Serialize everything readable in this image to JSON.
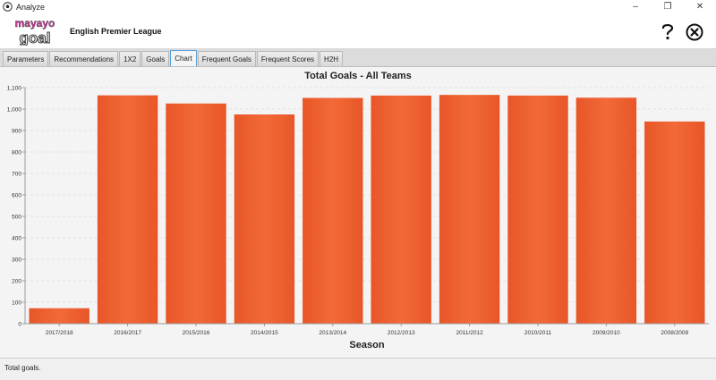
{
  "window": {
    "title": "Analyze",
    "controls": [
      "–",
      "❐",
      "✕"
    ]
  },
  "header": {
    "logo_top": "mayayo",
    "logo_bottom": "goal",
    "league": "English Premier League"
  },
  "tabs": [
    {
      "label": "Parameters",
      "active": false
    },
    {
      "label": "Recommendations",
      "active": false
    },
    {
      "label": "1X2",
      "active": false
    },
    {
      "label": "Goals",
      "active": false
    },
    {
      "label": "Chart",
      "active": true
    },
    {
      "label": "Frequent Goals",
      "active": false
    },
    {
      "label": "Frequent Scores",
      "active": false
    },
    {
      "label": "H2H",
      "active": false
    }
  ],
  "icons": {
    "help": "help-icon",
    "close": "close-circle-icon",
    "app": "soccer-ball-icon"
  },
  "chart_data": {
    "type": "bar",
    "title": "Total Goals - All Teams",
    "xlabel": "Season",
    "ylabel": "",
    "categories": [
      "2017/2018",
      "2016/2017",
      "2015/2016",
      "2014/2015",
      "2013/2014",
      "2012/2013",
      "2011/2012",
      "2010/2011",
      "2009/2010",
      "2008/2009"
    ],
    "values": [
      72,
      1064,
      1026,
      975,
      1052,
      1063,
      1066,
      1063,
      1053,
      942
    ],
    "ylim": [
      0,
      1100
    ],
    "yticks": [
      0,
      100,
      200,
      300,
      400,
      500,
      600,
      700,
      800,
      900,
      1000,
      1100
    ],
    "ytick_labels": [
      "0",
      "100",
      "200",
      "300",
      "400",
      "500",
      "600",
      "700",
      "800",
      "900",
      "1,000",
      "1,100"
    ],
    "grid": true,
    "bar_color": "#ef6030"
  },
  "status": {
    "text": "Total goals."
  }
}
